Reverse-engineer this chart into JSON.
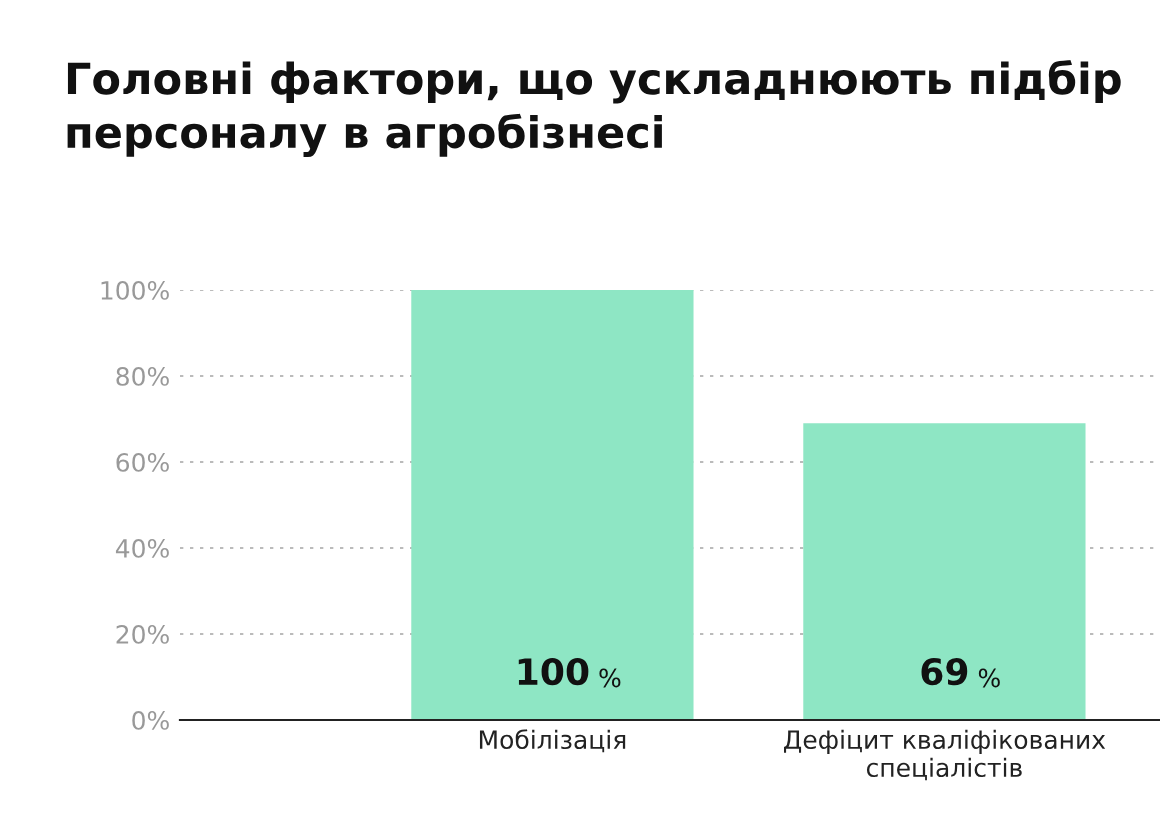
{
  "chart_data": {
    "type": "bar",
    "title": "Головні фактори, що ускладнюють підбір\nперсоналу в агробізнесі",
    "categories": [
      "Мобілізація",
      "Дефіцит кваліфікованих\nспеціалістів"
    ],
    "values": [
      100,
      69
    ],
    "color": "#8ee6c4",
    "value_labels": [
      "100 %",
      "69 %"
    ],
    "ylim": [
      0,
      100
    ],
    "yticks": [
      {
        "value": 0,
        "label": "0%"
      },
      {
        "value": 20,
        "label": "20%"
      },
      {
        "value": 40,
        "label": "40%"
      },
      {
        "value": 60,
        "label": "60%"
      },
      {
        "value": 80,
        "label": "80%"
      },
      {
        "value": 100,
        "label": "100%"
      }
    ],
    "grid": "y"
  }
}
